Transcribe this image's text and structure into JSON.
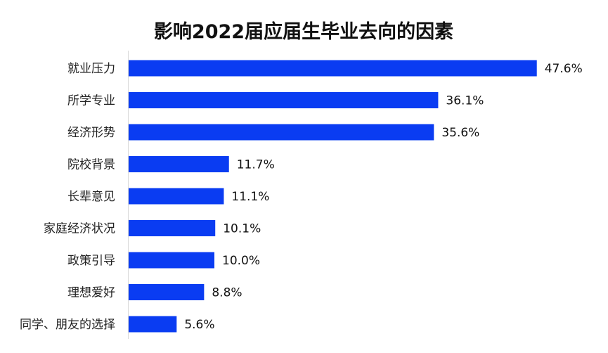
{
  "chart_data": {
    "type": "bar",
    "orientation": "horizontal",
    "title": "影响2022届应届生毕业去向的因素",
    "categories": [
      "就业压力",
      "所学专业",
      "经济形势",
      "院校背景",
      "长辈意见",
      "家庭经济状况",
      "政策引导",
      "理想爱好",
      "同学、朋友的选择"
    ],
    "values": [
      47.6,
      36.1,
      35.6,
      11.7,
      11.1,
      10.1,
      10.0,
      8.8,
      5.6
    ],
    "value_labels": [
      "47.6%",
      "36.1%",
      "35.6%",
      "11.7%",
      "11.1%",
      "10.1%",
      "10.0%",
      "8.8%",
      "5.6%"
    ],
    "unit": "%",
    "xlim": [
      0,
      50
    ],
    "grid": false,
    "legend": "none",
    "bar_color": "#0a3cf2"
  }
}
